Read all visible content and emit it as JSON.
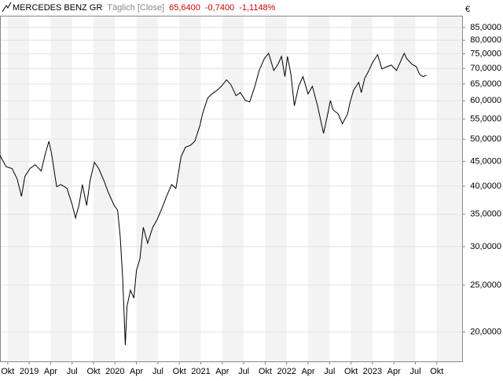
{
  "chart_data": {
    "type": "line",
    "title": "MERCEDES BENZ GR",
    "interval": "Täglich [Close]",
    "last": "65,6400",
    "change": "-0,7400",
    "change_pct": "-1,1148%",
    "currency": "€",
    "log_scale": true,
    "grid": true,
    "xlim": [
      2018.66,
      2024.045
    ],
    "ylim": [
      17.4,
      89.9
    ],
    "xticks": [
      {
        "value": 2018.75,
        "label": "Okt"
      },
      {
        "value": 2019.0,
        "label": "2019"
      },
      {
        "value": 2019.25,
        "label": "Apr"
      },
      {
        "value": 2019.5,
        "label": "Jul"
      },
      {
        "value": 2019.75,
        "label": "Okt"
      },
      {
        "value": 2020.0,
        "label": "2020"
      },
      {
        "value": 2020.25,
        "label": "Apr"
      },
      {
        "value": 2020.5,
        "label": "Jul"
      },
      {
        "value": 2020.75,
        "label": "Okt"
      },
      {
        "value": 2021.0,
        "label": "2021"
      },
      {
        "value": 2021.25,
        "label": "Apr"
      },
      {
        "value": 2021.5,
        "label": "Jul"
      },
      {
        "value": 2021.75,
        "label": "Okt"
      },
      {
        "value": 2022.0,
        "label": "2022"
      },
      {
        "value": 2022.25,
        "label": "Apr"
      },
      {
        "value": 2022.5,
        "label": "Jul"
      },
      {
        "value": 2022.75,
        "label": "Okt"
      },
      {
        "value": 2023.0,
        "label": "2023"
      },
      {
        "value": 2023.25,
        "label": "Apr"
      },
      {
        "value": 2023.5,
        "label": "Jul"
      },
      {
        "value": 2023.75,
        "label": "Okt"
      }
    ],
    "yticks": [
      {
        "value": 20,
        "label": "20,0000"
      },
      {
        "value": 25,
        "label": "25,0000"
      },
      {
        "value": 30,
        "label": "30,0000"
      },
      {
        "value": 35,
        "label": "35,0000"
      },
      {
        "value": 40,
        "label": "40,0000"
      },
      {
        "value": 45,
        "label": "45,0000"
      },
      {
        "value": 50,
        "label": "50,0000"
      },
      {
        "value": 55,
        "label": "55,0000"
      },
      {
        "value": 60,
        "label": "60,0000"
      },
      {
        "value": 65,
        "label": "65,0000"
      },
      {
        "value": 70,
        "label": "70,0000"
      },
      {
        "value": 75,
        "label": "75,0000"
      },
      {
        "value": 80,
        "label": "80,0000"
      },
      {
        "value": 85,
        "label": "85,0000"
      }
    ],
    "x": [
      2018.66,
      2018.73,
      2018.8,
      2018.86,
      2018.91,
      2018.95,
      2019.01,
      2019.07,
      2019.14,
      2019.19,
      2019.23,
      2019.26,
      2019.32,
      2019.37,
      2019.44,
      2019.5,
      2019.54,
      2019.58,
      2019.62,
      2019.67,
      2019.71,
      2019.76,
      2019.81,
      2019.87,
      2019.92,
      2019.99,
      2020.03,
      2020.06,
      2020.09,
      2020.12,
      2020.14,
      2020.18,
      2020.22,
      2020.25,
      2020.29,
      2020.33,
      2020.38,
      2020.44,
      2020.49,
      2020.55,
      2020.6,
      2020.66,
      2020.71,
      2020.77,
      2020.82,
      2020.88,
      2020.93,
      2020.99,
      2021.02,
      2021.08,
      2021.13,
      2021.19,
      2021.24,
      2021.3,
      2021.35,
      2021.41,
      2021.46,
      2021.52,
      2021.57,
      2021.63,
      2021.68,
      2021.74,
      2021.79,
      2021.85,
      2021.9,
      2021.94,
      2021.98,
      2022.01,
      2022.05,
      2022.09,
      2022.14,
      2022.19,
      2022.25,
      2022.3,
      2022.36,
      2022.4,
      2022.43,
      2022.47,
      2022.51,
      2022.54,
      2022.6,
      2022.65,
      2022.71,
      2022.74,
      2022.78,
      2022.84,
      2022.87,
      2022.91,
      2022.95,
      2023.0,
      2023.06,
      2023.11,
      2023.17,
      2023.22,
      2023.28,
      2023.33,
      2023.37,
      2023.4,
      2023.46,
      2023.51,
      2023.55,
      2023.59,
      2023.63
    ],
    "series": [
      {
        "name": "MERCEDES BENZ GR",
        "color": "#000000",
        "values": [
          46.3,
          43.9,
          43.5,
          41.4,
          38.1,
          41.9,
          43.5,
          44.3,
          43.0,
          46.8,
          49.5,
          46.8,
          39.9,
          40.3,
          39.6,
          36.7,
          34.4,
          36.5,
          40.3,
          36.5,
          41.1,
          44.8,
          43.5,
          41.1,
          38.9,
          36.5,
          35.7,
          31.6,
          25.8,
          18.8,
          22.6,
          24.4,
          23.5,
          26.8,
          28.3,
          32.9,
          30.5,
          32.9,
          34.1,
          36.1,
          38.1,
          40.3,
          39.6,
          46.0,
          48.1,
          48.6,
          49.5,
          53.4,
          56.4,
          60.8,
          62.0,
          63.1,
          64.3,
          66.3,
          64.8,
          61.5,
          62.4,
          60.1,
          59.7,
          64.3,
          69.3,
          73.3,
          75.2,
          69.3,
          71.4,
          74.1,
          67.3,
          74.1,
          68.0,
          58.6,
          64.3,
          67.3,
          62.0,
          64.3,
          58.6,
          54.4,
          51.4,
          55.4,
          60.1,
          57.5,
          56.4,
          53.8,
          56.4,
          59.7,
          63.1,
          65.5,
          62.4,
          66.8,
          68.8,
          71.9,
          74.7,
          69.8,
          70.6,
          71.1,
          69.3,
          72.5,
          75.2,
          73.3,
          71.4,
          70.6,
          68.0,
          67.3,
          67.8
        ]
      }
    ]
  }
}
